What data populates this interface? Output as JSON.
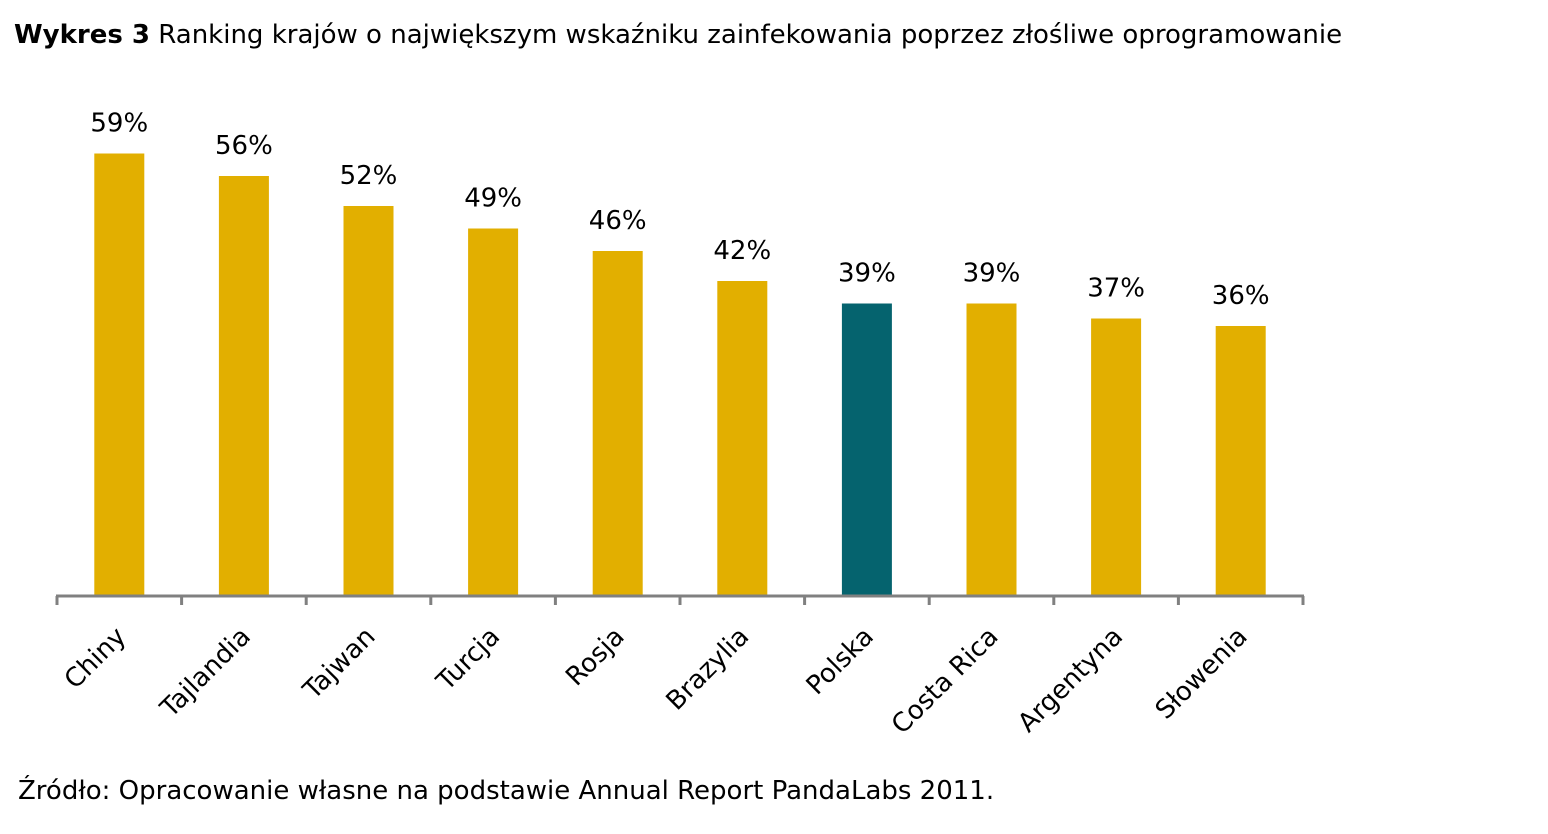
{
  "title": {
    "prefix": "Wykres 3",
    "text": "Ranking krajów o największym wskaźniku zainfekowania poprzez złośliwe oprogramowanie"
  },
  "source": "Źródło: Opracowanie własne na podstawie Annual Report PandaLabs 2011.",
  "colors": {
    "default": "#E2AF00",
    "highlight": "#05636E",
    "axis": "#808080"
  },
  "chart_data": {
    "type": "bar",
    "title": "Ranking krajów o największym wskaźniku zainfekowania poprzez złośliwe oprogramowanie",
    "xlabel": "",
    "ylabel": "",
    "ylim": [
      0,
      60
    ],
    "grid": false,
    "categories": [
      "Chiny",
      "Tajlandia",
      "Tajwan",
      "Turcja",
      "Rosja",
      "Brazylia",
      "Polska",
      "Costa Rica",
      "Argentyna",
      "Słowenia"
    ],
    "values": [
      59,
      56,
      52,
      49,
      46,
      42,
      39,
      39,
      37,
      36
    ],
    "data_labels": [
      "59%",
      "56%",
      "52%",
      "49%",
      "46%",
      "42%",
      "39%",
      "39%",
      "37%",
      "36%"
    ],
    "highlight": "Polska"
  }
}
